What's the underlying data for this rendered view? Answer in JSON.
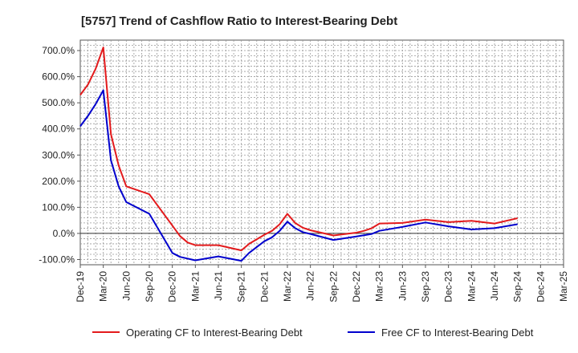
{
  "chart_data": {
    "type": "line",
    "title": "[5757]  Trend of Cashflow Ratio to Interest-Bearing Debt",
    "xlabel": "",
    "ylabel": "",
    "ylim": [
      -120,
      740
    ],
    "yticks": [
      -100,
      0,
      100,
      200,
      300,
      400,
      500,
      600,
      700
    ],
    "ytick_labels": [
      "-100.0%",
      "0.0%",
      "100.0%",
      "200.0%",
      "300.0%",
      "400.0%",
      "500.0%",
      "600.0%",
      "700.0%"
    ],
    "xlim": [
      "2019-12",
      "2025-03"
    ],
    "xtick_labels": [
      "Dec-19",
      "Mar-20",
      "Jun-20",
      "Sep-20",
      "Dec-20",
      "Mar-21",
      "Jun-21",
      "Sep-21",
      "Dec-21",
      "Mar-22",
      "Jun-22",
      "Sep-22",
      "Dec-22",
      "Mar-23",
      "Jun-23",
      "Sep-23",
      "Dec-23",
      "Mar-24",
      "Jun-24",
      "Sep-24",
      "Dec-24",
      "Mar-25"
    ],
    "grid": true,
    "legend_position": "bottom",
    "series": [
      {
        "name": "Operating CF to Interest-Bearing Debt",
        "color": "#e31a1c",
        "points": [
          [
            "2019-12",
            530
          ],
          [
            "2020-01",
            570
          ],
          [
            "2020-02",
            630
          ],
          [
            "2020-03",
            712
          ],
          [
            "2020-04",
            380
          ],
          [
            "2020-05",
            260
          ],
          [
            "2020-06",
            180
          ],
          [
            "2020-09",
            150
          ],
          [
            "2020-12",
            30
          ],
          [
            "2021-01",
            -10
          ],
          [
            "2021-02",
            -35
          ],
          [
            "2021-03",
            -45
          ],
          [
            "2021-06",
            -45
          ],
          [
            "2021-09",
            -65
          ],
          [
            "2021-10",
            -40
          ],
          [
            "2021-12",
            -5
          ],
          [
            "2022-01",
            10
          ],
          [
            "2022-02",
            35
          ],
          [
            "2022-03",
            75
          ],
          [
            "2022-04",
            40
          ],
          [
            "2022-05",
            22
          ],
          [
            "2022-06",
            12
          ],
          [
            "2022-09",
            -8
          ],
          [
            "2022-12",
            3
          ],
          [
            "2023-01",
            10
          ],
          [
            "2023-02",
            20
          ],
          [
            "2023-03",
            38
          ],
          [
            "2023-06",
            40
          ],
          [
            "2023-09",
            53
          ],
          [
            "2023-12",
            43
          ],
          [
            "2024-03",
            48
          ],
          [
            "2024-06",
            38
          ],
          [
            "2024-09",
            58
          ]
        ]
      },
      {
        "name": "Free CF to Interest-Bearing Debt",
        "color": "#0000cd",
        "points": [
          [
            "2019-12",
            410
          ],
          [
            "2020-01",
            450
          ],
          [
            "2020-02",
            495
          ],
          [
            "2020-03",
            548
          ],
          [
            "2020-04",
            280
          ],
          [
            "2020-05",
            180
          ],
          [
            "2020-06",
            120
          ],
          [
            "2020-09",
            75
          ],
          [
            "2020-12",
            -75
          ],
          [
            "2021-01",
            -90
          ],
          [
            "2021-03",
            -103
          ],
          [
            "2021-06",
            -88
          ],
          [
            "2021-09",
            -105
          ],
          [
            "2021-10",
            -75
          ],
          [
            "2021-12",
            -30
          ],
          [
            "2022-01",
            -15
          ],
          [
            "2022-02",
            10
          ],
          [
            "2022-03",
            45
          ],
          [
            "2022-04",
            20
          ],
          [
            "2022-05",
            5
          ],
          [
            "2022-06",
            -2
          ],
          [
            "2022-09",
            -25
          ],
          [
            "2022-12",
            -12
          ],
          [
            "2023-02",
            -2
          ],
          [
            "2023-03",
            10
          ],
          [
            "2023-06",
            25
          ],
          [
            "2023-09",
            42
          ],
          [
            "2023-12",
            27
          ],
          [
            "2024-03",
            15
          ],
          [
            "2024-06",
            20
          ],
          [
            "2024-09",
            35
          ]
        ]
      }
    ]
  }
}
